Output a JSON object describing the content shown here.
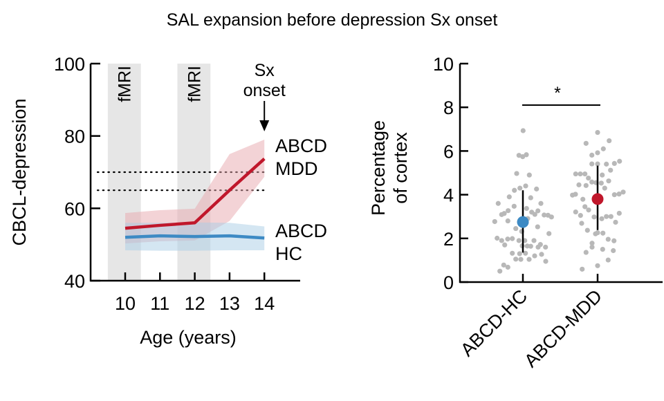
{
  "title": "SAL expansion before depression Sx onset",
  "colors": {
    "mdd": "#c0172b",
    "mdd_band": "#e8a7ae",
    "hc": "#3d8ac4",
    "hc_band": "#a9cde5",
    "fmri_shade": "#e6e6e6",
    "dots": "#b8b8b8",
    "axis": "#000000"
  },
  "chart_data": [
    {
      "type": "line",
      "title": "",
      "xlabel": "Age (years)",
      "ylabel": "CBCL-depression",
      "x": [
        10,
        11,
        12,
        13,
        14
      ],
      "xticks": [
        "10",
        "11",
        "12",
        "13",
        "14"
      ],
      "yticks": [
        "40",
        "60",
        "80",
        "100"
      ],
      "ylim": [
        40,
        100
      ],
      "xlim": [
        9,
        14.6
      ],
      "grid": false,
      "series": [
        {
          "name": "ABCD MDD",
          "label_lines": [
            "ABCD",
            "MDD"
          ],
          "values": [
            54.5,
            55.3,
            56.0,
            65.0,
            73.7
          ],
          "band_upper": [
            58.7,
            59.5,
            59.9,
            75.0,
            79.0
          ],
          "band_lower": [
            50.3,
            50.9,
            51.1,
            56.5,
            68.7
          ]
        },
        {
          "name": "ABCD HC",
          "label_lines": [
            "ABCD",
            "HC"
          ],
          "values": [
            52.0,
            52.4,
            52.2,
            52.4,
            51.8
          ],
          "band_upper": [
            56.0,
            56.0,
            56.1,
            56.0,
            55.0
          ],
          "band_lower": [
            48.4,
            48.3,
            48.3,
            48.4,
            48.4
          ]
        }
      ],
      "reference_lines": [
        70,
        65
      ],
      "shaded_regions": [
        {
          "label": "fMRI",
          "x_range": [
            9.5,
            10.45
          ]
        },
        {
          "label": "fMRI",
          "x_range": [
            11.5,
            12.45
          ]
        }
      ],
      "annotations": [
        {
          "text_lines": [
            "Sx",
            "onset"
          ],
          "x": 14,
          "arrow": "down"
        }
      ]
    },
    {
      "type": "scatter",
      "title": "",
      "xlabel": "",
      "ylabel_lines": [
        "Percentage",
        "of cortex"
      ],
      "ylabel": "Percentage of cortex",
      "categories": [
        "ABCD-HC",
        "ABCD-MDD"
      ],
      "yticks": [
        "0",
        "2",
        "4",
        "6",
        "8",
        "10"
      ],
      "ylim": [
        0,
        10
      ],
      "grid": false,
      "significance": {
        "between": [
          "ABCD-HC",
          "ABCD-MDD"
        ],
        "marker": "*",
        "y": 8.1
      },
      "groups": [
        {
          "name": "ABCD-HC",
          "mean": 2.75,
          "err_low": 1.35,
          "err_high": 4.2,
          "points": [
            {
              "j": 0.3,
              "y": 6.93
            },
            {
              "j": -5.7,
              "y": 5.8
            },
            {
              "j": -0.3,
              "y": 5.74
            },
            {
              "j": 5.0,
              "y": 5.83
            },
            {
              "j": -9.0,
              "y": 4.97
            },
            {
              "j": 9.3,
              "y": 4.9
            },
            {
              "j": 4.0,
              "y": 4.4
            },
            {
              "j": -4.3,
              "y": 4.3
            },
            {
              "j": -12.3,
              "y": 4.2
            },
            {
              "j": 19.7,
              "y": 4.26
            },
            {
              "j": -19.7,
              "y": 3.9
            },
            {
              "j": 11.3,
              "y": 3.86
            },
            {
              "j": -35.7,
              "y": 3.6
            },
            {
              "j": 26.0,
              "y": 3.6
            },
            {
              "j": -12.7,
              "y": 3.47
            },
            {
              "j": 5.3,
              "y": 3.37
            },
            {
              "j": -21.3,
              "y": 3.27
            },
            {
              "j": -30.7,
              "y": 3.09
            },
            {
              "j": -27.0,
              "y": 3.14
            },
            {
              "j": 12.7,
              "y": 3.2
            },
            {
              "j": 21.7,
              "y": 3.26
            },
            {
              "j": 17.3,
              "y": 3.1
            },
            {
              "j": 30.7,
              "y": 3.07
            },
            {
              "j": 36.3,
              "y": 3.06
            },
            {
              "j": 41.3,
              "y": 2.98
            },
            {
              "j": -40.7,
              "y": 2.77
            },
            {
              "j": -21.7,
              "y": 2.8
            },
            {
              "j": -10.3,
              "y": 2.45
            },
            {
              "j": 7.0,
              "y": 2.91
            },
            {
              "j": 21.3,
              "y": 2.53
            },
            {
              "j": -1.7,
              "y": 2.32
            },
            {
              "j": 37.7,
              "y": 2.22
            },
            {
              "j": -37.3,
              "y": 2.01
            },
            {
              "j": -30.7,
              "y": 1.9
            },
            {
              "j": -26.3,
              "y": 1.7
            },
            {
              "j": -22.0,
              "y": 1.97
            },
            {
              "j": -15.3,
              "y": 1.99
            },
            {
              "j": -5.7,
              "y": 1.9
            },
            {
              "j": 2.7,
              "y": 1.9
            },
            {
              "j": 16.0,
              "y": 1.9
            },
            {
              "j": -1.0,
              "y": 1.66
            },
            {
              "j": 6.3,
              "y": 1.65
            },
            {
              "j": 11.3,
              "y": 1.64
            },
            {
              "j": 22.0,
              "y": 1.6
            },
            {
              "j": 25.3,
              "y": 1.72
            },
            {
              "j": 32.7,
              "y": 1.6
            },
            {
              "j": -15.3,
              "y": 1.32
            },
            {
              "j": -4.7,
              "y": 1.3
            },
            {
              "j": 27.0,
              "y": 1.27
            },
            {
              "j": -10.3,
              "y": 1.05
            },
            {
              "j": -3.0,
              "y": 1.04
            },
            {
              "j": 9.0,
              "y": 1.04
            },
            {
              "j": 17.0,
              "y": 1.2
            },
            {
              "j": 33.0,
              "y": 0.95
            },
            {
              "j": -27.7,
              "y": 0.78
            },
            {
              "j": -21.7,
              "y": 0.68
            },
            {
              "j": -33.3,
              "y": 0.5
            },
            {
              "j": 3.7,
              "y": 1.32
            }
          ]
        },
        {
          "name": "ABCD-MDD",
          "mean": 3.8,
          "err_low": 2.38,
          "err_high": 5.33,
          "points": [
            {
              "j": 0.0,
              "y": 6.85
            },
            {
              "j": -16.7,
              "y": 6.35
            },
            {
              "j": 16.7,
              "y": 6.47
            },
            {
              "j": -8.3,
              "y": 5.81
            },
            {
              "j": 0.0,
              "y": 5.92
            },
            {
              "j": 8.3,
              "y": 6.1
            },
            {
              "j": -8.3,
              "y": 5.41
            },
            {
              "j": 0.0,
              "y": 5.41
            },
            {
              "j": 12.7,
              "y": 5.4
            },
            {
              "j": 24.3,
              "y": 5.43
            },
            {
              "j": 31.7,
              "y": 5.53
            },
            {
              "j": 18.7,
              "y": 5.12
            },
            {
              "j": -31.7,
              "y": 4.95
            },
            {
              "j": -25.0,
              "y": 4.95
            },
            {
              "j": -18.3,
              "y": 4.95
            },
            {
              "j": -13.3,
              "y": 4.76
            },
            {
              "j": 6.7,
              "y": 4.9
            },
            {
              "j": 16.0,
              "y": 4.63
            },
            {
              "j": 10.3,
              "y": 4.3
            },
            {
              "j": -27.0,
              "y": 4.45
            },
            {
              "j": -16.7,
              "y": 4.42
            },
            {
              "j": -8.3,
              "y": 4.58
            },
            {
              "j": -2.3,
              "y": 4.55
            },
            {
              "j": 5.3,
              "y": 4.53
            },
            {
              "j": -36.3,
              "y": 3.98
            },
            {
              "j": -32.0,
              "y": 4.02
            },
            {
              "j": -21.3,
              "y": 3.79
            },
            {
              "j": 24.3,
              "y": 4.0
            },
            {
              "j": 31.0,
              "y": 4.03
            },
            {
              "j": 37.0,
              "y": 4.12
            },
            {
              "j": -18.3,
              "y": 3.45
            },
            {
              "j": -13.0,
              "y": 3.3
            },
            {
              "j": -31.7,
              "y": 3.21
            },
            {
              "j": -24.7,
              "y": 3.05
            },
            {
              "j": -5.0,
              "y": 2.98
            },
            {
              "j": 6.0,
              "y": 2.9
            },
            {
              "j": 12.7,
              "y": 3.0
            },
            {
              "j": 19.3,
              "y": 3.0
            },
            {
              "j": 31.3,
              "y": 3.15
            },
            {
              "j": 26.0,
              "y": 2.74
            },
            {
              "j": -23.0,
              "y": 2.69
            },
            {
              "j": -14.7,
              "y": 2.37
            },
            {
              "j": 0.0,
              "y": 2.26
            },
            {
              "j": 7.7,
              "y": 2.24
            },
            {
              "j": 15.3,
              "y": 1.96
            },
            {
              "j": 23.7,
              "y": 1.89
            },
            {
              "j": -8.0,
              "y": 1.78
            },
            {
              "j": -8.0,
              "y": 1.6
            },
            {
              "j": -16.7,
              "y": 1.36
            },
            {
              "j": 7.3,
              "y": 1.5
            },
            {
              "j": 22.7,
              "y": 1.44
            },
            {
              "j": 15.3,
              "y": 1.01
            },
            {
              "j": -22.3,
              "y": 0.59
            },
            {
              "j": 0.0,
              "y": 0.75
            },
            {
              "j": -3.0,
              "y": 2.21
            }
          ]
        }
      ]
    }
  ]
}
